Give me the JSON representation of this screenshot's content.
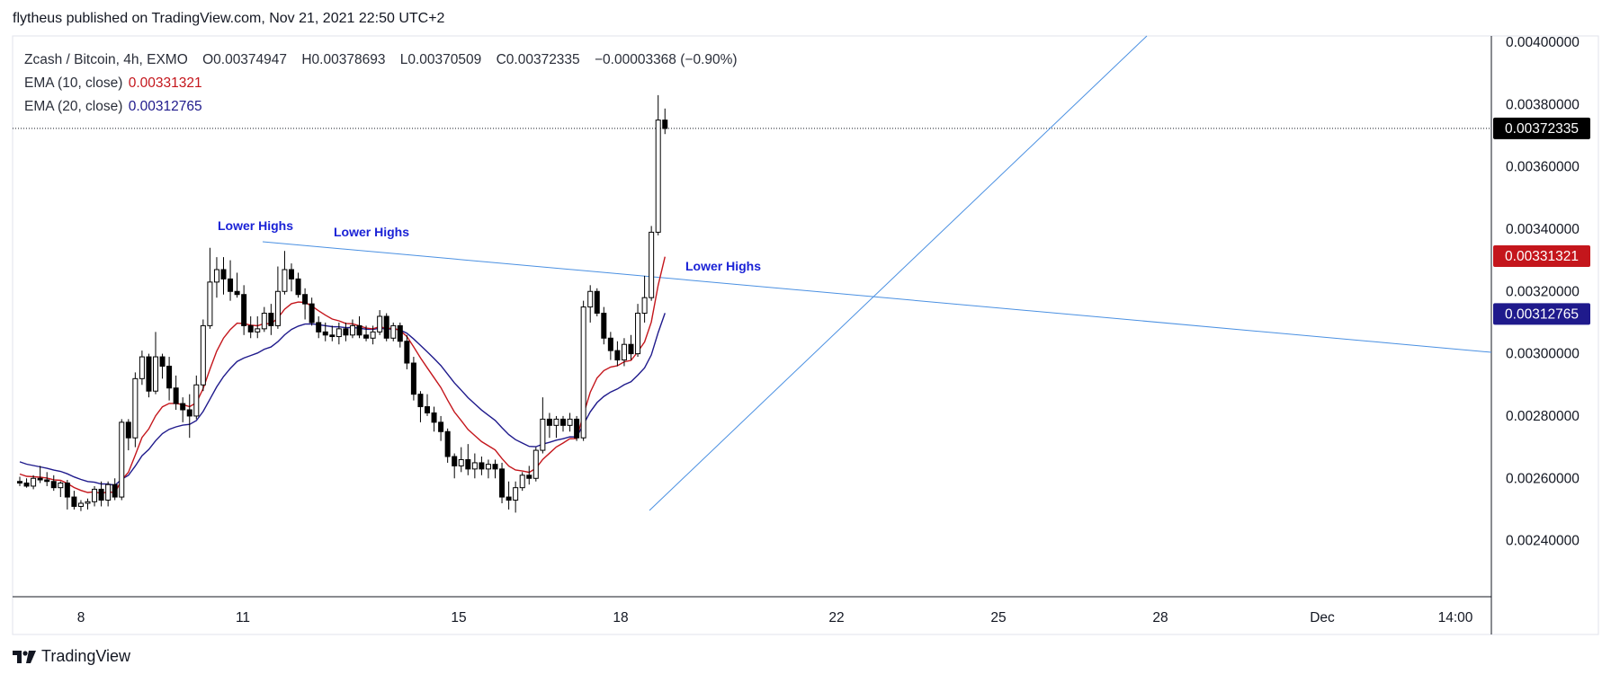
{
  "header": {
    "published_by": "flytheus published on TradingView.com, Nov 21, 2021 22:50 UTC+2"
  },
  "legend": {
    "symbol": "Zcash / Bitcoin, 4h, EXMO",
    "open_label": "O",
    "open": "0.00374947",
    "high_label": "H",
    "high": "0.00378693",
    "low_label": "L",
    "low": "0.00370509",
    "close_label": "C",
    "close": "0.00372335",
    "change": "−0.00003368 (−0.90%)",
    "ema10_label": "EMA (10, close)",
    "ema10_value": "0.00331321",
    "ema20_label": "EMA (20, close)",
    "ema20_value": "0.00312765"
  },
  "footer": {
    "brand": "TradingView"
  },
  "colors": {
    "ema10": "#c4161c",
    "ema20": "#1f1a8c",
    "trendline": "#4a90e2",
    "annotation": "#1a22d6",
    "candle_up": "#ffffff",
    "candle_down": "#000000",
    "candle_border": "#000000"
  },
  "chart_data": {
    "type": "candlestick",
    "symbol": "Zcash / Bitcoin",
    "interval": "4h",
    "exchange": "EXMO",
    "x_ticks": [
      "8",
      "11",
      "15",
      "18",
      "22",
      "25",
      "28",
      "Dec",
      "14:00"
    ],
    "y_ticks": [
      "0.00240000",
      "0.00260000",
      "0.00280000",
      "0.00300000",
      "0.00320000",
      "0.00340000",
      "0.00360000",
      "0.00380000",
      "0.00400000"
    ],
    "ylim": [
      0.00222,
      0.00402
    ],
    "last_price": "0.00372335",
    "ema10_last": "0.00331321",
    "ema20_last": "0.00312765",
    "annotations": [
      "Lower Highs",
      "Lower Highs",
      "Lower Highs"
    ],
    "candles": [
      {
        "o": 0.00259,
        "h": 0.002605,
        "l": 0.002575,
        "c": 0.002585
      },
      {
        "o": 0.002585,
        "h": 0.0026,
        "l": 0.00257,
        "c": 0.002575
      },
      {
        "o": 0.002575,
        "h": 0.00261,
        "l": 0.002565,
        "c": 0.0026
      },
      {
        "o": 0.0026,
        "h": 0.00264,
        "l": 0.002585,
        "c": 0.002595
      },
      {
        "o": 0.002595,
        "h": 0.00262,
        "l": 0.002575,
        "c": 0.00259
      },
      {
        "o": 0.00259,
        "h": 0.00261,
        "l": 0.00256,
        "c": 0.00257
      },
      {
        "o": 0.00257,
        "h": 0.00259,
        "l": 0.00254,
        "c": 0.002585
      },
      {
        "o": 0.002585,
        "h": 0.002595,
        "l": 0.0025,
        "c": 0.00254
      },
      {
        "o": 0.00254,
        "h": 0.00256,
        "l": 0.0025,
        "c": 0.00251
      },
      {
        "o": 0.00251,
        "h": 0.00253,
        "l": 0.002495,
        "c": 0.00252
      },
      {
        "o": 0.00252,
        "h": 0.002535,
        "l": 0.0025,
        "c": 0.002525
      },
      {
        "o": 0.002525,
        "h": 0.002575,
        "l": 0.00251,
        "c": 0.002565
      },
      {
        "o": 0.002565,
        "h": 0.00259,
        "l": 0.00251,
        "c": 0.00253
      },
      {
        "o": 0.00253,
        "h": 0.00259,
        "l": 0.00251,
        "c": 0.00258
      },
      {
        "o": 0.00258,
        "h": 0.0026,
        "l": 0.00253,
        "c": 0.00254
      },
      {
        "o": 0.00254,
        "h": 0.00279,
        "l": 0.00253,
        "c": 0.00278
      },
      {
        "o": 0.00278,
        "h": 0.00279,
        "l": 0.00269,
        "c": 0.00273
      },
      {
        "o": 0.00273,
        "h": 0.00294,
        "l": 0.0027,
        "c": 0.00292
      },
      {
        "o": 0.00292,
        "h": 0.00301,
        "l": 0.0029,
        "c": 0.00299
      },
      {
        "o": 0.00299,
        "h": 0.003,
        "l": 0.00286,
        "c": 0.00288
      },
      {
        "o": 0.00288,
        "h": 0.00307,
        "l": 0.00287,
        "c": 0.00299
      },
      {
        "o": 0.00299,
        "h": 0.003,
        "l": 0.00292,
        "c": 0.00296
      },
      {
        "o": 0.00296,
        "h": 0.00299,
        "l": 0.00285,
        "c": 0.00289
      },
      {
        "o": 0.00289,
        "h": 0.00293,
        "l": 0.00282,
        "c": 0.00284
      },
      {
        "o": 0.00284,
        "h": 0.00286,
        "l": 0.00278,
        "c": 0.00282
      },
      {
        "o": 0.00282,
        "h": 0.00287,
        "l": 0.00273,
        "c": 0.0028
      },
      {
        "o": 0.0028,
        "h": 0.00293,
        "l": 0.00279,
        "c": 0.0029
      },
      {
        "o": 0.0029,
        "h": 0.00311,
        "l": 0.00288,
        "c": 0.00309
      },
      {
        "o": 0.00309,
        "h": 0.00334,
        "l": 0.00308,
        "c": 0.00323
      },
      {
        "o": 0.00323,
        "h": 0.00331,
        "l": 0.00318,
        "c": 0.00327
      },
      {
        "o": 0.00327,
        "h": 0.00331,
        "l": 0.00319,
        "c": 0.00324
      },
      {
        "o": 0.00324,
        "h": 0.0033,
        "l": 0.00317,
        "c": 0.0032
      },
      {
        "o": 0.0032,
        "h": 0.00326,
        "l": 0.00318,
        "c": 0.00319
      },
      {
        "o": 0.00319,
        "h": 0.00322,
        "l": 0.00306,
        "c": 0.00309
      },
      {
        "o": 0.00309,
        "h": 0.00312,
        "l": 0.00305,
        "c": 0.00307
      },
      {
        "o": 0.00307,
        "h": 0.00312,
        "l": 0.00305,
        "c": 0.00308
      },
      {
        "o": 0.00308,
        "h": 0.00315,
        "l": 0.00307,
        "c": 0.00313
      },
      {
        "o": 0.00313,
        "h": 0.00316,
        "l": 0.00306,
        "c": 0.00309
      },
      {
        "o": 0.00309,
        "h": 0.00328,
        "l": 0.00308,
        "c": 0.0032
      },
      {
        "o": 0.0032,
        "h": 0.00333,
        "l": 0.00319,
        "c": 0.00327
      },
      {
        "o": 0.00327,
        "h": 0.00329,
        "l": 0.0032,
        "c": 0.00324
      },
      {
        "o": 0.00324,
        "h": 0.00326,
        "l": 0.00318,
        "c": 0.00319
      },
      {
        "o": 0.00319,
        "h": 0.00321,
        "l": 0.00311,
        "c": 0.00316
      },
      {
        "o": 0.00316,
        "h": 0.00318,
        "l": 0.00309,
        "c": 0.0031
      },
      {
        "o": 0.0031,
        "h": 0.00312,
        "l": 0.00305,
        "c": 0.00307
      },
      {
        "o": 0.00307,
        "h": 0.0031,
        "l": 0.00304,
        "c": 0.00306
      },
      {
        "o": 0.00306,
        "h": 0.00309,
        "l": 0.00304,
        "c": 0.003055
      },
      {
        "o": 0.003055,
        "h": 0.0031,
        "l": 0.00303,
        "c": 0.00308
      },
      {
        "o": 0.00308,
        "h": 0.0031,
        "l": 0.00304,
        "c": 0.00306
      },
      {
        "o": 0.00306,
        "h": 0.00311,
        "l": 0.00305,
        "c": 0.00309
      },
      {
        "o": 0.00309,
        "h": 0.00312,
        "l": 0.00305,
        "c": 0.00306
      },
      {
        "o": 0.00306,
        "h": 0.00309,
        "l": 0.00304,
        "c": 0.00305
      },
      {
        "o": 0.00305,
        "h": 0.00309,
        "l": 0.00303,
        "c": 0.00307
      },
      {
        "o": 0.00307,
        "h": 0.00314,
        "l": 0.00306,
        "c": 0.00312
      },
      {
        "o": 0.00312,
        "h": 0.00313,
        "l": 0.00304,
        "c": 0.00305
      },
      {
        "o": 0.00305,
        "h": 0.0031,
        "l": 0.00304,
        "c": 0.00309
      },
      {
        "o": 0.00309,
        "h": 0.0031,
        "l": 0.00302,
        "c": 0.00304
      },
      {
        "o": 0.00304,
        "h": 0.00306,
        "l": 0.00295,
        "c": 0.00297
      },
      {
        "o": 0.00297,
        "h": 0.00299,
        "l": 0.00285,
        "c": 0.00287
      },
      {
        "o": 0.00287,
        "h": 0.00288,
        "l": 0.00278,
        "c": 0.00283
      },
      {
        "o": 0.00283,
        "h": 0.00287,
        "l": 0.0028,
        "c": 0.00281
      },
      {
        "o": 0.00281,
        "h": 0.00283,
        "l": 0.00275,
        "c": 0.00278
      },
      {
        "o": 0.00278,
        "h": 0.0028,
        "l": 0.00272,
        "c": 0.00275
      },
      {
        "o": 0.00275,
        "h": 0.00276,
        "l": 0.00265,
        "c": 0.00267
      },
      {
        "o": 0.00267,
        "h": 0.00268,
        "l": 0.0026,
        "c": 0.00264
      },
      {
        "o": 0.00264,
        "h": 0.0027,
        "l": 0.00262,
        "c": 0.00266
      },
      {
        "o": 0.00266,
        "h": 0.00271,
        "l": 0.00261,
        "c": 0.00263
      },
      {
        "o": 0.00263,
        "h": 0.00268,
        "l": 0.0026,
        "c": 0.00265
      },
      {
        "o": 0.00265,
        "h": 0.00267,
        "l": 0.00261,
        "c": 0.00263
      },
      {
        "o": 0.00263,
        "h": 0.00266,
        "l": 0.0026,
        "c": 0.002645
      },
      {
        "o": 0.002645,
        "h": 0.00266,
        "l": 0.0026,
        "c": 0.00263
      },
      {
        "o": 0.00263,
        "h": 0.00265,
        "l": 0.00252,
        "c": 0.00254
      },
      {
        "o": 0.00254,
        "h": 0.00259,
        "l": 0.0025,
        "c": 0.00253
      },
      {
        "o": 0.00253,
        "h": 0.00259,
        "l": 0.00249,
        "c": 0.00257
      },
      {
        "o": 0.00257,
        "h": 0.00262,
        "l": 0.00256,
        "c": 0.00261
      },
      {
        "o": 0.00261,
        "h": 0.00264,
        "l": 0.00258,
        "c": 0.0026
      },
      {
        "o": 0.0026,
        "h": 0.0027,
        "l": 0.00259,
        "c": 0.00269
      },
      {
        "o": 0.00269,
        "h": 0.00286,
        "l": 0.00268,
        "c": 0.00279
      },
      {
        "o": 0.00279,
        "h": 0.00281,
        "l": 0.00273,
        "c": 0.00277
      },
      {
        "o": 0.00277,
        "h": 0.0028,
        "l": 0.00273,
        "c": 0.00279
      },
      {
        "o": 0.00279,
        "h": 0.0028,
        "l": 0.00275,
        "c": 0.00277
      },
      {
        "o": 0.00277,
        "h": 0.00281,
        "l": 0.00275,
        "c": 0.00279
      },
      {
        "o": 0.00279,
        "h": 0.0028,
        "l": 0.00272,
        "c": 0.00273
      },
      {
        "o": 0.00273,
        "h": 0.00317,
        "l": 0.00272,
        "c": 0.00315
      },
      {
        "o": 0.00315,
        "h": 0.00322,
        "l": 0.0031,
        "c": 0.0032
      },
      {
        "o": 0.0032,
        "h": 0.00321,
        "l": 0.00312,
        "c": 0.00313
      },
      {
        "o": 0.00313,
        "h": 0.00315,
        "l": 0.00303,
        "c": 0.00305
      },
      {
        "o": 0.00305,
        "h": 0.00307,
        "l": 0.00298,
        "c": 0.00301
      },
      {
        "o": 0.00301,
        "h": 0.00304,
        "l": 0.00296,
        "c": 0.00298
      },
      {
        "o": 0.00298,
        "h": 0.00305,
        "l": 0.00296,
        "c": 0.00303
      },
      {
        "o": 0.00303,
        "h": 0.00306,
        "l": 0.00298,
        "c": 0.003
      },
      {
        "o": 0.003,
        "h": 0.00316,
        "l": 0.00299,
        "c": 0.00313
      },
      {
        "o": 0.00313,
        "h": 0.00325,
        "l": 0.0031,
        "c": 0.00318
      },
      {
        "o": 0.00318,
        "h": 0.00341,
        "l": 0.00317,
        "c": 0.00339
      },
      {
        "o": 0.00339,
        "h": 0.00383,
        "l": 0.00338,
        "c": 0.00375
      },
      {
        "o": 0.00375,
        "h": 0.003787,
        "l": 0.003705,
        "c": 0.003723
      }
    ]
  }
}
